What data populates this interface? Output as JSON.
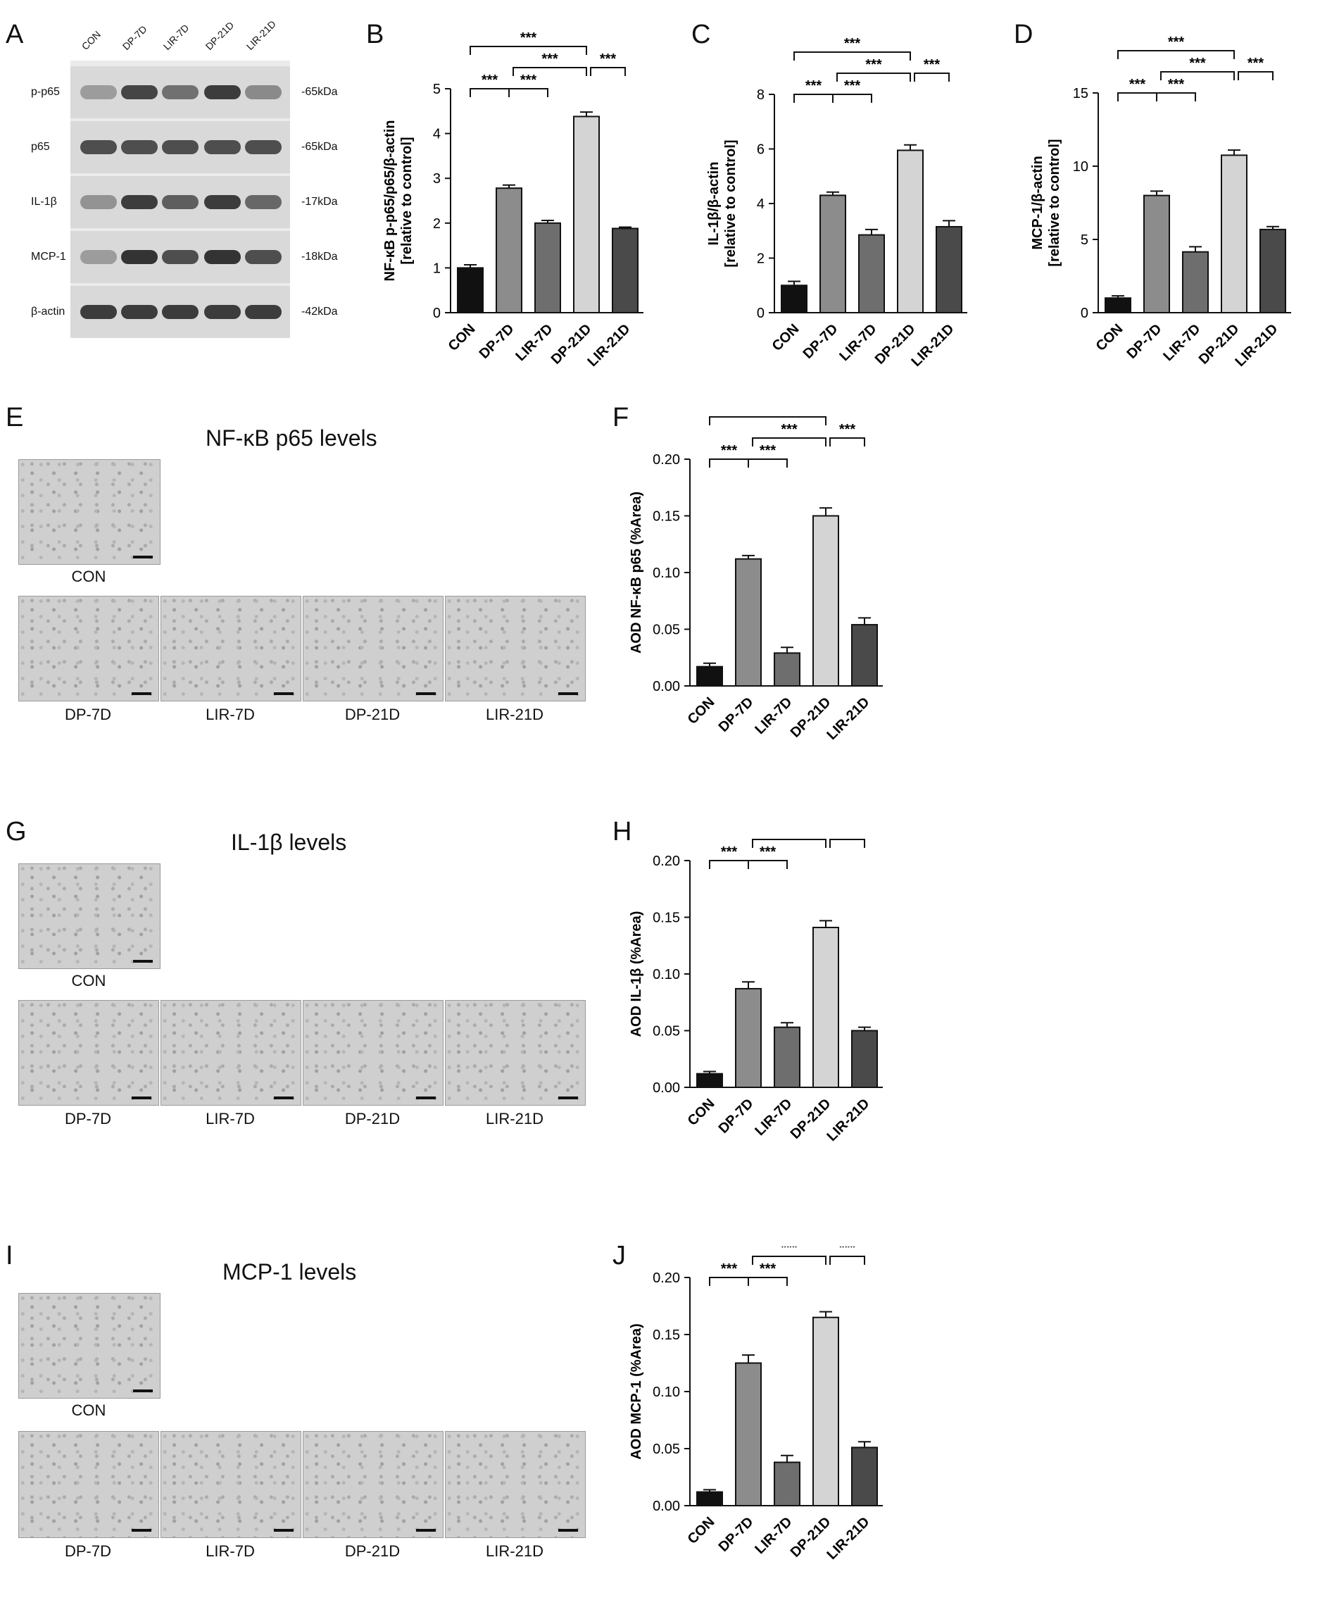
{
  "panel_letters": [
    "A",
    "B",
    "C",
    "D",
    "E",
    "F",
    "G",
    "H",
    "I",
    "J"
  ],
  "western_blot": {
    "lanes": [
      "CON",
      "DP-7D",
      "LIR-7D",
      "DP-21D",
      "LIR-21D"
    ],
    "rows": [
      {
        "name": "p-p65",
        "kda": "-65kDa",
        "intensity": [
          0.35,
          0.85,
          0.6,
          0.9,
          0.45
        ]
      },
      {
        "name": "p65",
        "kda": "-65kDa",
        "intensity": [
          0.8,
          0.8,
          0.8,
          0.8,
          0.8
        ]
      },
      {
        "name": "IL-1β",
        "kda": "-17kDa",
        "intensity": [
          0.4,
          0.9,
          0.7,
          0.9,
          0.65
        ]
      },
      {
        "name": "MCP-1",
        "kda": "-18kDa",
        "intensity": [
          0.35,
          0.95,
          0.8,
          0.95,
          0.8
        ]
      },
      {
        "name": "β-actin",
        "kda": "-42kDa",
        "intensity": [
          0.9,
          0.9,
          0.9,
          0.9,
          0.9
        ]
      }
    ]
  },
  "ihc": [
    {
      "title": "NF-κB p65 levels",
      "labels": [
        "CON",
        "DP-7D",
        "LIR-7D",
        "DP-21D",
        "LIR-21D"
      ]
    },
    {
      "title": "IL-1β levels",
      "labels": [
        "CON",
        "DP-7D",
        "LIR-7D",
        "DP-21D",
        "LIR-21D"
      ]
    },
    {
      "title": "MCP-1 levels",
      "labels": [
        "CON",
        "DP-7D",
        "LIR-7D",
        "DP-21D",
        "LIR-21D"
      ]
    }
  ],
  "sig_label": "***",
  "bar_colors": [
    "#111111",
    "#8c8c8c",
    "#6e6e6e",
    "#d4d4d4",
    "#4a4a4a"
  ],
  "chart_data": [
    {
      "panel": "B",
      "type": "bar",
      "categories": [
        "CON",
        "DP-7D",
        "LIR-7D",
        "DP-21D",
        "LIR-21D"
      ],
      "values": [
        1.0,
        2.78,
        2.0,
        4.38,
        1.88
      ],
      "errors": [
        0.07,
        0.07,
        0.06,
        0.1,
        0.03
      ],
      "ylabel_lines": [
        "NF-κB p-p65/p65/β-actin",
        "[relative to control]"
      ],
      "ylim": [
        0,
        5
      ],
      "yticks": [
        "0",
        "1",
        "2",
        "3",
        "4",
        "5"
      ],
      "sig_brackets": [
        [
          0,
          3
        ],
        [
          1,
          3
        ],
        [
          3,
          4
        ],
        [
          0,
          1
        ],
        [
          1,
          2
        ]
      ]
    },
    {
      "panel": "C",
      "type": "bar",
      "categories": [
        "CON",
        "DP-7D",
        "LIR-7D",
        "DP-21D",
        "LIR-21D"
      ],
      "values": [
        1.0,
        4.3,
        2.85,
        5.95,
        3.15
      ],
      "errors": [
        0.15,
        0.12,
        0.2,
        0.2,
        0.22
      ],
      "ylabel_lines": [
        "IL-1β/β-actin",
        "[relative to control]"
      ],
      "ylim": [
        0,
        8
      ],
      "yticks": [
        "0",
        "2",
        "4",
        "6",
        "8"
      ],
      "sig_brackets": [
        [
          0,
          3
        ],
        [
          1,
          3
        ],
        [
          3,
          4
        ],
        [
          0,
          1
        ],
        [
          1,
          2
        ]
      ]
    },
    {
      "panel": "D",
      "type": "bar",
      "categories": [
        "CON",
        "DP-7D",
        "LIR-7D",
        "DP-21D",
        "LIR-21D"
      ],
      "values": [
        1.0,
        8.0,
        4.15,
        10.75,
        5.68
      ],
      "errors": [
        0.15,
        0.3,
        0.35,
        0.35,
        0.2
      ],
      "ylabel_lines": [
        "MCP-1/β-actin",
        "[relative to control]"
      ],
      "ylim": [
        0,
        15
      ],
      "yticks": [
        "0",
        "5",
        "10",
        "15"
      ],
      "sig_brackets": [
        [
          0,
          3
        ],
        [
          1,
          3
        ],
        [
          3,
          4
        ],
        [
          0,
          1
        ],
        [
          1,
          2
        ]
      ]
    },
    {
      "panel": "F",
      "type": "bar",
      "categories": [
        "CON",
        "DP-7D",
        "LIR-7D",
        "DP-21D",
        "LIR-21D"
      ],
      "values": [
        0.017,
        0.112,
        0.029,
        0.15,
        0.054
      ],
      "errors": [
        0.003,
        0.003,
        0.005,
        0.007,
        0.006
      ],
      "ylabel_lines": [
        "AOD NF-κB p65 (%Area)"
      ],
      "ylim": [
        0,
        0.2
      ],
      "yticks": [
        "0.00",
        "0.05",
        "0.10",
        "0.15",
        "0.20"
      ],
      "sig_brackets": [
        [
          0,
          3
        ],
        [
          1,
          3
        ],
        [
          3,
          4
        ],
        [
          0,
          1
        ],
        [
          1,
          2
        ]
      ]
    },
    {
      "panel": "H",
      "type": "bar",
      "categories": [
        "CON",
        "DP-7D",
        "LIR-7D",
        "DP-21D",
        "LIR-21D"
      ],
      "values": [
        0.012,
        0.087,
        0.053,
        0.141,
        0.05
      ],
      "errors": [
        0.002,
        0.006,
        0.004,
        0.006,
        0.003
      ],
      "ylabel_lines": [
        "AOD IL-1β (%Area)"
      ],
      "ylim": [
        0,
        0.2
      ],
      "yticks": [
        "0.00",
        "0.05",
        "0.10",
        "0.15",
        "0.20"
      ],
      "sig_brackets": [
        [
          0,
          3
        ],
        [
          1,
          3
        ],
        [
          3,
          4
        ],
        [
          0,
          1
        ],
        [
          1,
          2
        ]
      ]
    },
    {
      "panel": "J",
      "type": "bar",
      "categories": [
        "CON",
        "DP-7D",
        "LIR-7D",
        "DP-21D",
        "LIR-21D"
      ],
      "values": [
        0.012,
        0.125,
        0.038,
        0.165,
        0.051
      ],
      "errors": [
        0.002,
        0.007,
        0.006,
        0.005,
        0.005
      ],
      "ylabel_lines": [
        "AOD MCP-1 (%Area)"
      ],
      "ylim": [
        0,
        0.2
      ],
      "yticks": [
        "0.00",
        "0.05",
        "0.10",
        "0.15",
        "0.20"
      ],
      "sig_brackets": [
        [
          0,
          3
        ],
        [
          1,
          3
        ],
        [
          3,
          4
        ],
        [
          0,
          1
        ],
        [
          1,
          2
        ]
      ]
    }
  ]
}
